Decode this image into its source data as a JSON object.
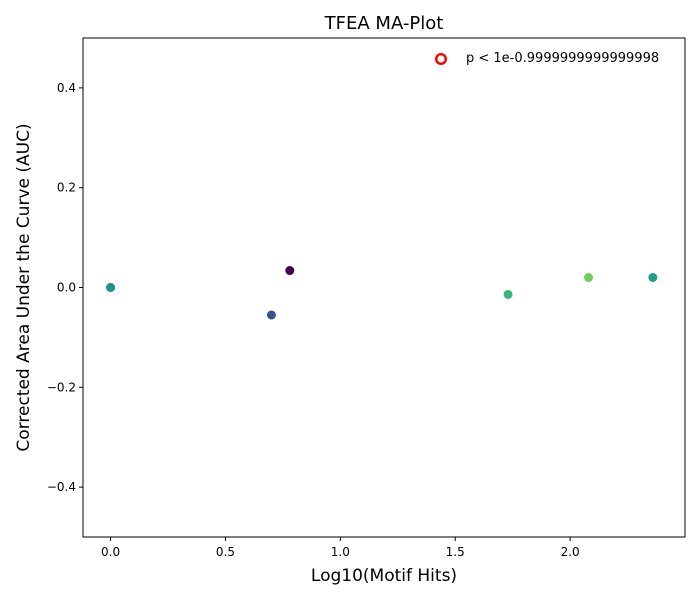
{
  "chart_data": {
    "type": "scatter",
    "title": "TFEA MA-Plot",
    "xlabel": "Log10(Motif Hits)",
    "ylabel": "Corrected Area Under the Curve (AUC)",
    "xlim": [
      -0.12,
      2.5
    ],
    "ylim": [
      -0.5,
      0.5
    ],
    "xticks": [
      0.0,
      0.5,
      1.0,
      1.5,
      2.0
    ],
    "yticks": [
      -0.4,
      -0.2,
      0.0,
      0.2,
      0.4
    ],
    "xtick_labels": [
      "0.0",
      "0.5",
      "1.0",
      "1.5",
      "2.0"
    ],
    "ytick_labels": [
      "−0.4",
      "−0.2",
      "0.0",
      "0.2",
      "0.4"
    ],
    "grid": false,
    "legend": {
      "position": "top-right",
      "entries": [
        {
          "label": "p < 1e-0.9999999999999998",
          "marker": "open-circle",
          "color": "#ff0000"
        }
      ]
    },
    "points": [
      {
        "x": 0.0,
        "y": 0.0,
        "color": "#21918c"
      },
      {
        "x": 0.0,
        "y": 0.0,
        "color": "#21918c"
      },
      {
        "x": 0.7,
        "y": -0.055,
        "color": "#3b528b"
      },
      {
        "x": 0.78,
        "y": 0.034,
        "color": "#440154"
      },
      {
        "x": 1.73,
        "y": -0.014,
        "color": "#35b779"
      },
      {
        "x": 2.08,
        "y": 0.02,
        "color": "#6ccd5a"
      },
      {
        "x": 2.36,
        "y": 0.02,
        "color": "#1f9e89"
      }
    ]
  }
}
